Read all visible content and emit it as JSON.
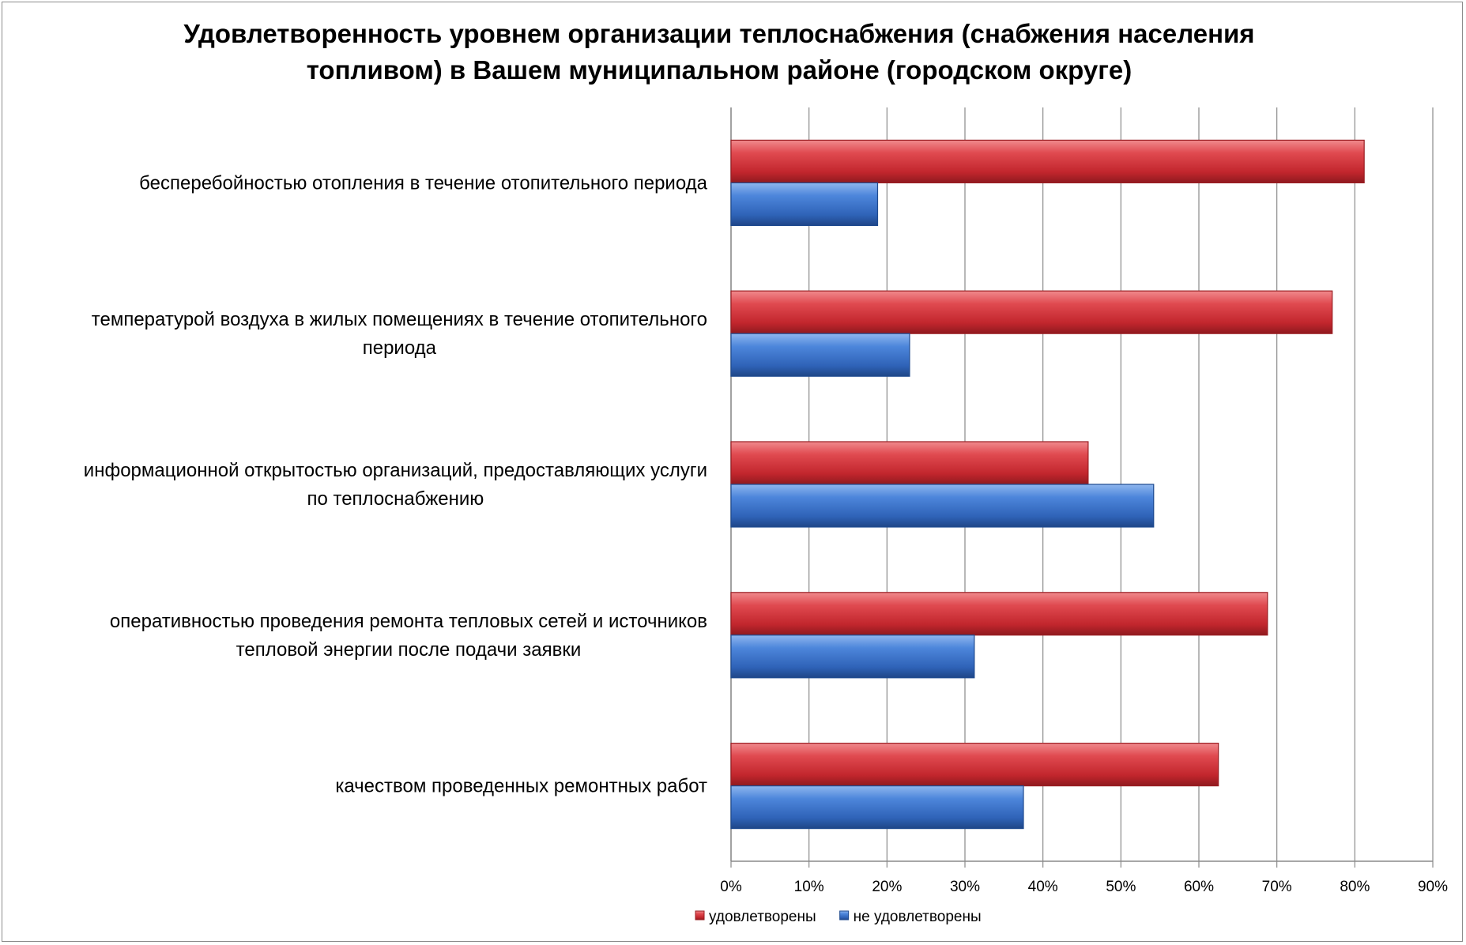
{
  "chart_data": {
    "type": "bar",
    "orientation": "horizontal",
    "title": "Удовлетворенность уровнем организации теплоснабжения (снабжения населения топливом) в Вашем муниципальном районе (городском округе)",
    "categories": [
      [
        "бесперебойностью  отопления в течение отопительного периода"
      ],
      [
        "температурой  воздуха в жилых помещениях в течение отопительного",
        "периода"
      ],
      [
        "информационной открытостью организаций, предоставляющих услуги",
        "по теплоснабжению"
      ],
      [
        "оперативностью проведения ремонта тепловых сетей и источников",
        "тепловой энергии после подачи заявки"
      ],
      [
        "качеством проведенных ремонтных работ"
      ]
    ],
    "series": [
      {
        "name": "удовлетворены",
        "values": [
          81.2,
          77.1,
          45.8,
          68.8,
          62.5
        ],
        "color": "#d9363e"
      },
      {
        "name": "не удовлетворены",
        "values": [
          18.8,
          22.9,
          54.2,
          31.2,
          37.5
        ],
        "color": "#3d74c9"
      }
    ],
    "xlim": [
      0,
      90
    ],
    "xticks": [
      "0%",
      "10%",
      "20%",
      "30%",
      "40%",
      "50%",
      "60%",
      "70%",
      "80%",
      "90%"
    ],
    "grid": true,
    "legend_position": "bottom"
  }
}
